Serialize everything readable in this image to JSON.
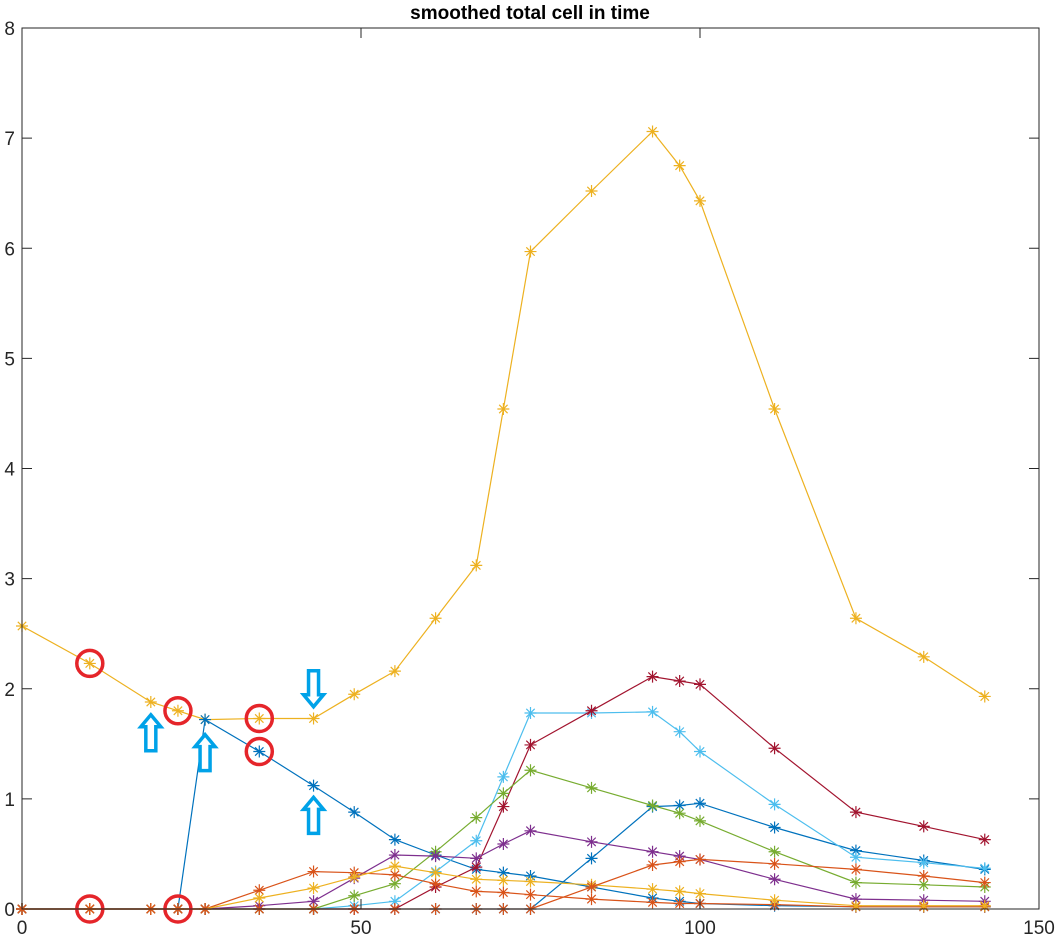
{
  "chart_data": {
    "type": "line",
    "title": "smoothed total cell in time",
    "xlabel": "",
    "ylabel": "",
    "xlim": [
      0,
      150
    ],
    "ylim": [
      0,
      8
    ],
    "xticks": [
      "0",
      "50",
      "100",
      "150"
    ],
    "yticks": [
      "0",
      "1",
      "2",
      "3",
      "4",
      "5",
      "6",
      "7",
      "8"
    ],
    "grid": false,
    "legend": "none",
    "marker": "*",
    "series": [
      {
        "color": "#EDB120",
        "x": [
          0,
          10,
          19,
          23,
          27,
          35,
          43,
          49,
          55,
          61,
          67,
          71,
          75,
          84,
          93,
          97,
          100,
          111,
          123,
          133,
          142
        ],
        "y": [
          2.57,
          2.23,
          1.88,
          1.8,
          1.72,
          1.73,
          1.73,
          1.95,
          2.16,
          2.64,
          3.12,
          4.54,
          5.97,
          6.52,
          7.06,
          6.75,
          6.43,
          4.54,
          2.64,
          2.29,
          1.93
        ]
      },
      {
        "color": "#0072BD",
        "x": [
          0,
          10,
          19,
          23,
          27,
          35,
          43,
          49,
          55,
          61,
          67,
          71,
          75,
          84,
          93,
          97,
          100,
          111,
          123,
          133,
          142
        ],
        "y": [
          0,
          0,
          0,
          0,
          1.72,
          1.43,
          1.12,
          0.88,
          0.63,
          0.49,
          0.36,
          0.33,
          0.3,
          0.2,
          0.1,
          0.07,
          0.05,
          0.03,
          0.02,
          0.02,
          0.02
        ]
      },
      {
        "color": "#0072BD",
        "x": [
          0,
          10,
          19,
          23,
          27,
          35,
          43,
          49,
          55,
          61,
          67,
          71,
          75,
          84,
          93,
          97,
          100,
          111,
          123,
          133,
          142
        ],
        "y": [
          0,
          0,
          0,
          0,
          0,
          0,
          0,
          0,
          0,
          0,
          0,
          0,
          0,
          0.46,
          0.93,
          0.94,
          0.96,
          0.74,
          0.53,
          0.44,
          0.36
        ]
      },
      {
        "color": "#4DBEEE",
        "x": [
          0,
          10,
          19,
          23,
          27,
          35,
          43,
          49,
          55,
          61,
          67,
          71,
          75,
          84,
          93,
          97,
          100,
          111,
          123,
          133,
          142
        ],
        "y": [
          0,
          0,
          0,
          0,
          0,
          0,
          0,
          0.03,
          0.07,
          0.34,
          0.62,
          1.2,
          1.78,
          1.78,
          1.79,
          1.61,
          1.43,
          0.95,
          0.47,
          0.42,
          0.37
        ]
      },
      {
        "color": "#A2142F",
        "x": [
          0,
          10,
          19,
          23,
          27,
          35,
          43,
          49,
          55,
          61,
          67,
          71,
          75,
          84,
          93,
          97,
          100,
          111,
          123,
          133,
          142
        ],
        "y": [
          0,
          0,
          0,
          0,
          0,
          0,
          0,
          0,
          0,
          0.2,
          0.38,
          0.93,
          1.49,
          1.8,
          2.11,
          2.07,
          2.04,
          1.46,
          0.88,
          0.75,
          0.63
        ]
      },
      {
        "color": "#77AC30",
        "x": [
          0,
          10,
          19,
          23,
          27,
          35,
          43,
          49,
          55,
          61,
          67,
          71,
          75,
          84,
          93,
          97,
          100,
          111,
          123,
          133,
          142
        ],
        "y": [
          0,
          0,
          0,
          0,
          0,
          0,
          0,
          0.12,
          0.23,
          0.52,
          0.83,
          1.05,
          1.26,
          1.1,
          0.94,
          0.87,
          0.8,
          0.52,
          0.24,
          0.22,
          0.2
        ]
      },
      {
        "color": "#7E2F8E",
        "x": [
          0,
          10,
          19,
          23,
          27,
          35,
          43,
          49,
          55,
          61,
          67,
          71,
          75,
          84,
          93,
          97,
          100,
          111,
          123,
          133,
          142
        ],
        "y": [
          0,
          0,
          0,
          0,
          0,
          0.03,
          0.07,
          0.28,
          0.49,
          0.48,
          0.46,
          0.59,
          0.71,
          0.61,
          0.52,
          0.48,
          0.45,
          0.27,
          0.09,
          0.08,
          0.07
        ]
      },
      {
        "color": "#D95319",
        "x": [
          0,
          10,
          19,
          23,
          27,
          35,
          43,
          49,
          55,
          61,
          67,
          71,
          75,
          84,
          93,
          97,
          100,
          111,
          123,
          133,
          142
        ],
        "y": [
          0,
          0,
          0,
          0,
          0,
          0.17,
          0.34,
          0.33,
          0.31,
          0.23,
          0.16,
          0.15,
          0.13,
          0.09,
          0.06,
          0.05,
          0.05,
          0.04,
          0.02,
          0.02,
          0.02
        ]
      },
      {
        "color": "#EDB120",
        "x": [
          0,
          10,
          19,
          23,
          27,
          35,
          43,
          49,
          55,
          61,
          67,
          71,
          75,
          84,
          93,
          97,
          100,
          111,
          123,
          133,
          142
        ],
        "y": [
          0,
          0,
          0,
          0,
          0,
          0.1,
          0.19,
          0.29,
          0.39,
          0.33,
          0.27,
          0.26,
          0.25,
          0.22,
          0.18,
          0.16,
          0.14,
          0.08,
          0.03,
          0.03,
          0.03
        ]
      },
      {
        "color": "#D95319",
        "x": [
          0,
          10,
          19,
          23,
          27,
          35,
          43,
          49,
          55,
          61,
          67,
          71,
          75,
          84,
          93,
          97,
          100,
          111,
          123,
          133,
          142
        ],
        "y": [
          0,
          0,
          0,
          0,
          0,
          0,
          0,
          0,
          0,
          0,
          0,
          0,
          0,
          0.2,
          0.4,
          0.43,
          0.45,
          0.41,
          0.36,
          0.3,
          0.24
        ]
      }
    ],
    "annotations": {
      "circle_color": "#E5252A",
      "arrow_color": "#00A2E8",
      "circles": [
        {
          "x": 10,
          "y": 2.23
        },
        {
          "x": 23,
          "y": 1.8
        },
        {
          "x": 35,
          "y": 1.73
        },
        {
          "x": 35,
          "y": 1.43
        },
        {
          "x": 10,
          "y": 0
        },
        {
          "x": 23,
          "y": 0
        }
      ],
      "arrows": [
        {
          "x": 19,
          "y": 1.6,
          "direction": "up"
        },
        {
          "x": 27,
          "y": 1.42,
          "direction": "up"
        },
        {
          "x": 43,
          "y": 2.0,
          "direction": "down"
        },
        {
          "x": 43,
          "y": 0.85,
          "direction": "up"
        }
      ]
    }
  }
}
